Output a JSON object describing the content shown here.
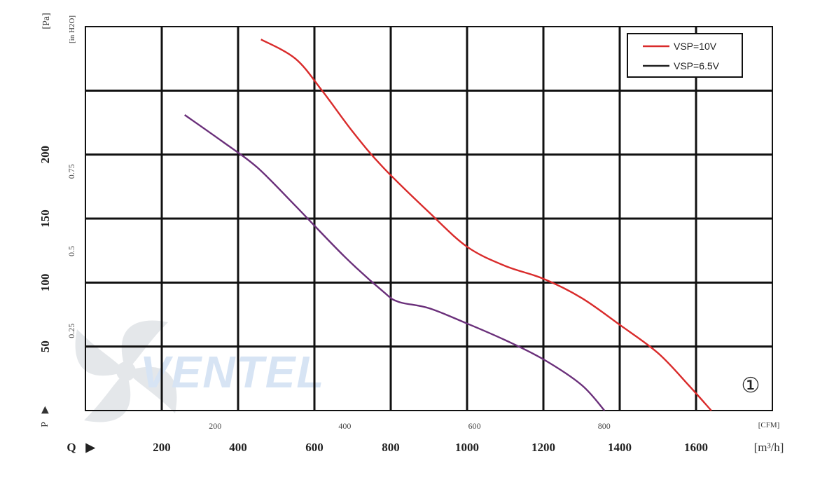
{
  "chart_data": {
    "type": "line",
    "x_unit_label": "[m³/h]",
    "x_axis_letter": "Q",
    "x_ticks": [
      200,
      400,
      600,
      800,
      1000,
      1200,
      1400,
      1600
    ],
    "xlim": [
      0,
      1800
    ],
    "x2_unit_label": "[CFM]",
    "x2_ticks": [
      "200",
      "400",
      "600",
      "800"
    ],
    "y_unit_label": "[Pa]",
    "y_axis_letter": "P",
    "y_ticks": [
      50,
      100,
      150,
      200
    ],
    "ylim": [
      0,
      300
    ],
    "y2_unit_label": "[in H2O]",
    "y2_ticks": [
      "0.25",
      "0.5",
      "0.75"
    ],
    "grid": true,
    "legend_position": "top-right",
    "curve_marker": "①",
    "series": [
      {
        "name": "VSP=10V",
        "color": "#d92b2b",
        "points": [
          [
            460,
            290
          ],
          [
            550,
            275
          ],
          [
            620,
            250
          ],
          [
            700,
            218
          ],
          [
            780,
            190
          ],
          [
            900,
            155
          ],
          [
            1000,
            128
          ],
          [
            1100,
            113
          ],
          [
            1200,
            103
          ],
          [
            1300,
            88
          ],
          [
            1400,
            67
          ],
          [
            1500,
            45
          ],
          [
            1580,
            20
          ],
          [
            1640,
            0
          ]
        ]
      },
      {
        "name": "VSP=6.5V",
        "color": "#6a2f7a",
        "points": [
          [
            260,
            231
          ],
          [
            360,
            210
          ],
          [
            450,
            190
          ],
          [
            550,
            160
          ],
          [
            680,
            120
          ],
          [
            780,
            93
          ],
          [
            820,
            85
          ],
          [
            900,
            80
          ],
          [
            1000,
            68
          ],
          [
            1100,
            55
          ],
          [
            1200,
            40
          ],
          [
            1300,
            20
          ],
          [
            1360,
            0
          ]
        ]
      }
    ]
  },
  "watermark_text": "VENTEL"
}
